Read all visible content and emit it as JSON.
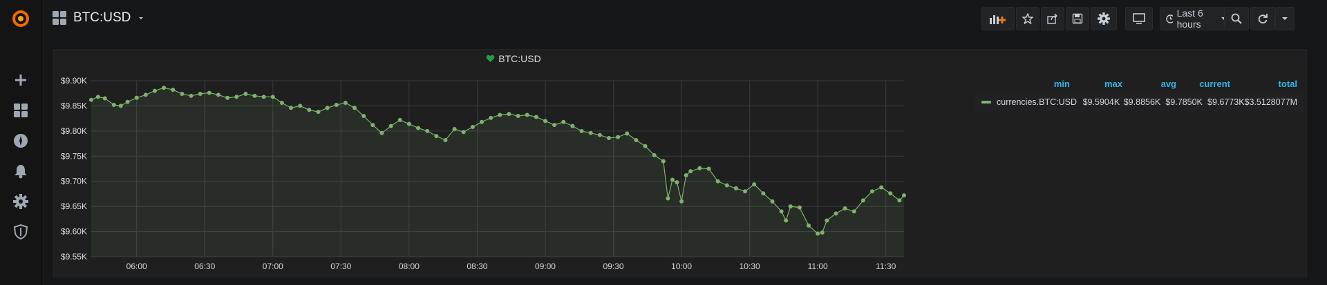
{
  "dashboard": {
    "title": "BTC:USD"
  },
  "sidebar": {
    "items": [
      {
        "icon": "grafana-logo-icon"
      },
      {
        "icon": "plus-icon"
      },
      {
        "icon": "dashboards-grid-icon"
      },
      {
        "icon": "explore-compass-icon"
      },
      {
        "icon": "alerting-bell-icon"
      },
      {
        "icon": "configuration-gear-icon"
      },
      {
        "icon": "shield-icon"
      }
    ]
  },
  "toolbar": {
    "time_range_label": "Last 6 hours",
    "buttons": [
      "add-panel-icon",
      "star-icon",
      "share-icon",
      "save-icon",
      "settings-gear-icon",
      "tv-mode-icon",
      "zoom-out-icon",
      "refresh-icon",
      "chevron-down-icon"
    ]
  },
  "panel": {
    "title": "BTC:USD",
    "status_color": "#299c46",
    "legend": {
      "headers": [
        "min",
        "max",
        "avg",
        "current",
        "total"
      ],
      "series_name": "currencies.BTC:USD",
      "values": [
        "$9.5904K",
        "$9.8856K",
        "$9.7850K",
        "$9.6773K",
        "$3.5128077M"
      ],
      "series_color": "#7eb26d"
    }
  },
  "chart_data": {
    "type": "line",
    "title": "BTC:USD",
    "xlabel": "",
    "ylabel": "",
    "y_tick_labels": [
      "$9.90K",
      "$9.85K",
      "$9.80K",
      "$9.75K",
      "$9.70K",
      "$9.65K",
      "$9.60K",
      "$9.55K"
    ],
    "x_tick_labels": [
      "06:00",
      "06:30",
      "07:00",
      "07:30",
      "08:00",
      "08:30",
      "09:00",
      "09:30",
      "10:00",
      "10:30",
      "11:00",
      "11:30"
    ],
    "ylim": [
      9.55,
      9.9
    ],
    "xlim": [
      "05:40",
      "11:38"
    ],
    "grid": true,
    "series": [
      {
        "name": "currencies.BTC:USD",
        "color": "#7eb26d",
        "x": [
          "05:40",
          "05:43",
          "05:46",
          "05:50",
          "05:53",
          "05:56",
          "06:00",
          "06:04",
          "06:08",
          "06:12",
          "06:16",
          "06:20",
          "06:24",
          "06:28",
          "06:32",
          "06:36",
          "06:40",
          "06:44",
          "06:48",
          "06:52",
          "06:56",
          "07:00",
          "07:04",
          "07:08",
          "07:12",
          "07:16",
          "07:20",
          "07:24",
          "07:28",
          "07:32",
          "07:36",
          "07:40",
          "07:44",
          "07:48",
          "07:52",
          "07:56",
          "08:00",
          "08:04",
          "08:08",
          "08:12",
          "08:16",
          "08:20",
          "08:24",
          "08:28",
          "08:32",
          "08:36",
          "08:40",
          "08:44",
          "08:48",
          "08:52",
          "08:56",
          "09:00",
          "09:04",
          "09:08",
          "09:12",
          "09:16",
          "09:20",
          "09:24",
          "09:28",
          "09:32",
          "09:36",
          "09:40",
          "09:44",
          "09:48",
          "09:52",
          "09:54",
          "09:56",
          "09:58",
          "10:00",
          "10:02",
          "10:04",
          "10:08",
          "10:12",
          "10:16",
          "10:20",
          "10:24",
          "10:28",
          "10:32",
          "10:36",
          "10:40",
          "10:44",
          "10:46",
          "10:48",
          "10:52",
          "10:56",
          "11:00",
          "11:02",
          "11:04",
          "11:08",
          "11:12",
          "11:16",
          "11:20",
          "11:24",
          "11:28",
          "11:32",
          "11:36",
          "11:38"
        ],
        "values": [
          9.862,
          9.868,
          9.865,
          9.852,
          9.85,
          9.858,
          9.866,
          9.872,
          9.88,
          9.886,
          9.882,
          9.874,
          9.87,
          9.874,
          9.876,
          9.872,
          9.866,
          9.868,
          9.874,
          9.87,
          9.868,
          9.868,
          9.856,
          9.846,
          9.85,
          9.842,
          9.838,
          9.846,
          9.852,
          9.856,
          9.846,
          9.83,
          9.812,
          9.796,
          9.81,
          9.822,
          9.814,
          9.806,
          9.8,
          9.79,
          9.782,
          9.804,
          9.798,
          9.808,
          9.818,
          9.826,
          9.832,
          9.834,
          9.83,
          9.832,
          9.828,
          9.82,
          9.812,
          9.818,
          9.81,
          9.8,
          9.796,
          9.792,
          9.786,
          9.788,
          9.795,
          9.782,
          9.77,
          9.752,
          9.74,
          9.666,
          9.703,
          9.698,
          9.66,
          9.712,
          9.72,
          9.726,
          9.725,
          9.7,
          9.692,
          9.686,
          9.68,
          9.694,
          9.676,
          9.66,
          9.64,
          9.622,
          9.65,
          9.648,
          9.612,
          9.596,
          9.598,
          9.622,
          9.636,
          9.646,
          9.64,
          9.662,
          9.68,
          9.688,
          9.676,
          9.662,
          9.672
        ]
      }
    ]
  }
}
